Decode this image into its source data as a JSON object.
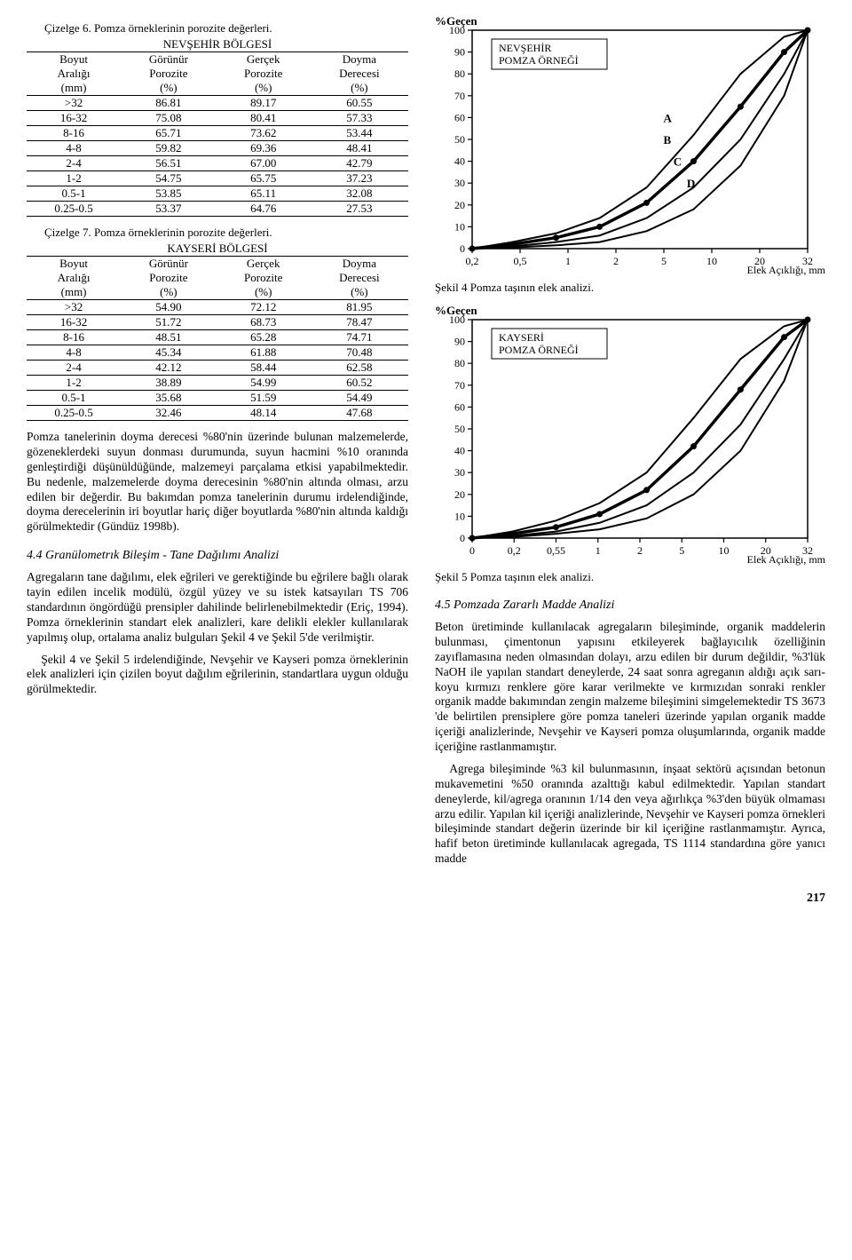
{
  "table6": {
    "caption": "Çizelge 6. Pomza örneklerinin porozite değerleri.",
    "region": "NEVŞEHİR BÖLGESİ",
    "headers": {
      "c1a": "Boyut",
      "c1b": "Aralığı",
      "c1c": "(mm)",
      "c2a": "Görünür",
      "c2b": "Porozite",
      "c2c": "(%)",
      "c3a": "Gerçek",
      "c3b": "Porozite",
      "c3c": "(%)",
      "c4a": "Doyma",
      "c4b": "Derecesi",
      "c4c": "(%)"
    },
    "rows": [
      [
        ">32",
        "86.81",
        "89.17",
        "60.55"
      ],
      [
        "16-32",
        "75.08",
        "80.41",
        "57.33"
      ],
      [
        "8-16",
        "65.71",
        "73.62",
        "53.44"
      ],
      [
        "4-8",
        "59.82",
        "69.36",
        "48.41"
      ],
      [
        "2-4",
        "56.51",
        "67.00",
        "42.79"
      ],
      [
        "1-2",
        "54.75",
        "65.75",
        "37.23"
      ],
      [
        "0.5-1",
        "53.85",
        "65.11",
        "32.08"
      ],
      [
        "0.25-0.5",
        "53.37",
        "64.76",
        "27.53"
      ]
    ]
  },
  "table7": {
    "caption": "Çizelge 7. Pomza örneklerinin porozite değerleri.",
    "region": "KAYSERİ BÖLGESİ",
    "headers": {
      "c1a": "Boyut",
      "c1b": "Aralığı",
      "c1c": "(mm)",
      "c2a": "Görünür",
      "c2b": "Porozite",
      "c2c": "(%)",
      "c3a": "Gerçek",
      "c3b": "Porozite",
      "c3c": "(%)",
      "c4a": "Doyma",
      "c4b": "Derecesi",
      "c4c": "(%)"
    },
    "rows": [
      [
        ">32",
        "54.90",
        "72.12",
        "81.95"
      ],
      [
        "16-32",
        "51.72",
        "68.73",
        "78.47"
      ],
      [
        "8-16",
        "48.51",
        "65.28",
        "74.71"
      ],
      [
        "4-8",
        "45.34",
        "61.88",
        "70.48"
      ],
      [
        "2-4",
        "42.12",
        "58.44",
        "62.58"
      ],
      [
        "1-2",
        "38.89",
        "54.99",
        "60.52"
      ],
      [
        "0.5-1",
        "35.68",
        "51.59",
        "54.49"
      ],
      [
        "0.25-0.5",
        "32.46",
        "48.14",
        "47.68"
      ]
    ]
  },
  "para1": "Pomza tanelerinin doyma derecesi %80'nin üzerinde bulunan malzemelerde, gözeneklerdeki suyun donması durumunda, suyun hacmini %10 oranında genleştirdiği düşünüldüğünde, malzemeyi parçalama etkisi yapabilmektedir. Bu nedenle, malzemelerde doyma derecesinin %80'nin altında olması, arzu edilen bir değerdir. Bu bakımdan pomza tanelerinin durumu irdelendiğinde, doyma derecelerinin iri boyutlar hariç diğer boyutlarda %80'nin altında kaldığı görülmektedir (Gündüz 1998b).",
  "sec44": "4.4 Granülometrık Bileşim - Tane Dağılımı Analizi",
  "para2": "Agregaların tane dağılımı, elek eğrileri ve gerektiğinde bu eğrilere bağlı olarak tayin edilen incelik modülü, özgül yüzey ve su istek katsayıları TS 706 standardının öngördüğü prensipler dahilinde belirlenebilmektedir (Eriç, 1994). Pomza örneklerinin standart elek analizleri, kare delikli elekler kullanılarak yapılmış olup, ortalama analiz bulguları Şekil 4 ve Şekil 5'de verilmiştir.",
  "para3": "Şekil 4 ve Şekil 5 irdelendiğinde, Nevşehir ve Kayseri pomza örneklerinin elek analizleri için çizilen boyut dağılım eğrilerinin, standartlara uygun olduğu görülmektedir.",
  "chart1": {
    "ylabel": "%Geçen",
    "xlabel": "Elek Açıklığı, mm",
    "caption": "Şekil 4  Pomza taşının elek analizi.",
    "boxTitleA": "NEVŞEHİR",
    "boxTitleB": "POMZA ÖRNEĞİ",
    "xTicks": [
      "0,2",
      "0,5",
      "1",
      "2",
      "5",
      "10",
      "20",
      "32"
    ],
    "yTicks": [
      "0",
      "10",
      "20",
      "30",
      "40",
      "50",
      "60",
      "70",
      "80",
      "90",
      "100"
    ],
    "series": [
      {
        "label": "A",
        "stroke": "#000",
        "width": 2,
        "points": [
          [
            0,
            0
          ],
          [
            12,
            3
          ],
          [
            25,
            7
          ],
          [
            38,
            14
          ],
          [
            52,
            28
          ],
          [
            66,
            52
          ],
          [
            80,
            80
          ],
          [
            93,
            97
          ],
          [
            100,
            100
          ]
        ]
      },
      {
        "label": "B",
        "stroke": "#000",
        "width": 3.5,
        "points": [
          [
            0,
            0
          ],
          [
            12,
            2
          ],
          [
            25,
            5
          ],
          [
            38,
            10
          ],
          [
            52,
            21
          ],
          [
            66,
            40
          ],
          [
            80,
            65
          ],
          [
            93,
            90
          ],
          [
            100,
            100
          ]
        ],
        "dots": true
      },
      {
        "label": "C",
        "stroke": "#000",
        "width": 2,
        "points": [
          [
            0,
            0
          ],
          [
            12,
            1
          ],
          [
            25,
            3
          ],
          [
            38,
            6
          ],
          [
            52,
            14
          ],
          [
            66,
            28
          ],
          [
            80,
            50
          ],
          [
            93,
            80
          ],
          [
            100,
            100
          ]
        ]
      },
      {
        "label": "D",
        "stroke": "#000",
        "width": 2,
        "points": [
          [
            0,
            0
          ],
          [
            12,
            0.5
          ],
          [
            25,
            1.5
          ],
          [
            38,
            3
          ],
          [
            52,
            8
          ],
          [
            66,
            18
          ],
          [
            80,
            38
          ],
          [
            93,
            70
          ],
          [
            100,
            100
          ]
        ]
      }
    ],
    "labelPositions": {
      "A": [
        57,
        58
      ],
      "B": [
        57,
        48
      ],
      "C": [
        60,
        38
      ],
      "D": [
        64,
        28
      ]
    },
    "background": "#ffffff",
    "axisColor": "#000000"
  },
  "chart2": {
    "ylabel": "%Geçen",
    "xlabel": "Elek Açıklığı, mm",
    "caption": "Şekil 5  Pomza taşının elek analizi.",
    "boxTitleA": "KAYSERİ",
    "boxTitleB": "POMZA ÖRNEĞİ",
    "xTicks": [
      "0",
      "0,2",
      "0,55",
      "1",
      "2",
      "5",
      "10",
      "20",
      "32"
    ],
    "yTicks": [
      "0",
      "10",
      "20",
      "30",
      "40",
      "50",
      "60",
      "70",
      "80",
      "90",
      "100"
    ],
    "series": [
      {
        "label": "",
        "stroke": "#000",
        "width": 2,
        "points": [
          [
            0,
            0
          ],
          [
            12,
            3
          ],
          [
            25,
            8
          ],
          [
            38,
            16
          ],
          [
            52,
            30
          ],
          [
            66,
            55
          ],
          [
            80,
            82
          ],
          [
            93,
            97
          ],
          [
            100,
            100
          ]
        ]
      },
      {
        "label": "",
        "stroke": "#000",
        "width": 3.5,
        "points": [
          [
            0,
            0
          ],
          [
            12,
            2
          ],
          [
            25,
            5
          ],
          [
            38,
            11
          ],
          [
            52,
            22
          ],
          [
            66,
            42
          ],
          [
            80,
            68
          ],
          [
            93,
            92
          ],
          [
            100,
            100
          ]
        ],
        "dots": true
      },
      {
        "label": "",
        "stroke": "#000",
        "width": 2,
        "points": [
          [
            0,
            0
          ],
          [
            12,
            1
          ],
          [
            25,
            3
          ],
          [
            38,
            7
          ],
          [
            52,
            15
          ],
          [
            66,
            30
          ],
          [
            80,
            52
          ],
          [
            93,
            82
          ],
          [
            100,
            100
          ]
        ]
      },
      {
        "label": "",
        "stroke": "#000",
        "width": 2,
        "points": [
          [
            0,
            0
          ],
          [
            12,
            0.5
          ],
          [
            25,
            2
          ],
          [
            38,
            4
          ],
          [
            52,
            9
          ],
          [
            66,
            20
          ],
          [
            80,
            40
          ],
          [
            93,
            72
          ],
          [
            100,
            100
          ]
        ]
      }
    ],
    "background": "#ffffff",
    "axisColor": "#000000"
  },
  "sec45": "4.5  Pomzada Zararlı Madde Analizi",
  "para4": "Beton üretiminde kullanılacak agregaların bileşiminde, organik maddelerin bulunması, çimentonun yapısını etkileyerek bağlayıcılık özelliğinin zayıflamasına neden olmasından dolayı, arzu edilen bir durum değildir, %3'lük NaOH ile yapılan standart deneylerde, 24 saat sonra agreganın aldığı açık sarı-koyu kırmızı renklere göre karar verilmekte ve kırmızıdan sonraki renkler organik madde bakımından zengin malzeme bileşimini simgelemektedir TS 3673 'de belirtilen prensiplere göre pomza taneleri üzerinde yapılan organik madde içeriği analizlerinde, Nevşehir ve Kayseri pomza oluşumlarında, organik madde içeriğine rastlanmamıştır.",
  "para5": "Agrega bileşiminde %3 kil bulunmasının, inşaat sektörü açısından betonun mukavemetini %50 oranında azalttığı kabul edilmektedir. Yapılan standart deneylerde, kil/agrega oranının 1/14 den veya ağırlıkça %3'den büyük olmaması arzu edilir. Yapılan kil içeriği analizlerinde, Nevşehir ve Kayseri pomza örnekleri bileşiminde standart değerin üzerinde bir kil içeriğine rastlanmamıştır. Ayrıca, hafif beton üretiminde kullanılacak agregada, TS 1114 standardına göre yanıcı madde",
  "pageNumber": "217"
}
